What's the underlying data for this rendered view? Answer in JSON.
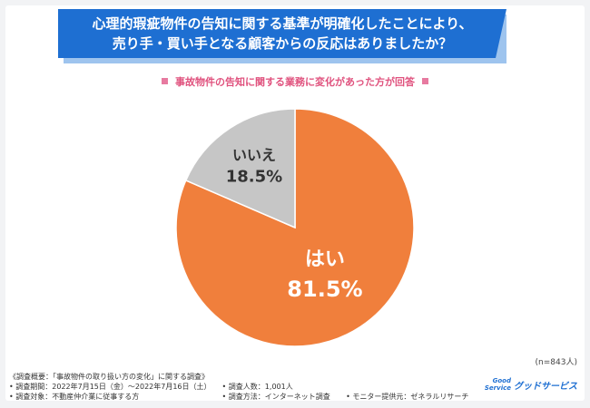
{
  "title": {
    "line1": "心理的瑕疵物件の告知に関する基準が明確化したことにより、",
    "line2": "売り手・買い手となる顧客からの反応はありましたか？"
  },
  "subtitle": "事故物件の告知に関する業務に変化があった方が回答",
  "sample_size": "(n=843人)",
  "colors": {
    "yes": "#f07f3c",
    "no": "#c6c6c6",
    "title_bg": "#1e6fd2",
    "accent": "#e0527e"
  },
  "chart_data": {
    "type": "pie",
    "slices": [
      {
        "label": "はい",
        "value": 81.5,
        "value_label": "81.5%",
        "color": "#f07f3c"
      },
      {
        "label": "いいえ",
        "value": 18.5,
        "value_label": "18.5%",
        "color": "#c6c6c6"
      }
    ]
  },
  "footer": {
    "heading": "《調査概要：「事故物件の取り扱い方の変化」に関する調査》",
    "period": "• 調査期間：2022年7月15日（金）〜2022年7月16日（土）",
    "count": "• 調査人数：1,001人",
    "target": "• 調査対象：不動産仲介業に従事する方",
    "method": "• 調査方法：インターネット調査",
    "provider": "• モニター提供元：ゼネラルリサーチ"
  },
  "logo": {
    "mark_line1": "Good",
    "mark_line2": "Service",
    "name": "グッドサービス"
  }
}
